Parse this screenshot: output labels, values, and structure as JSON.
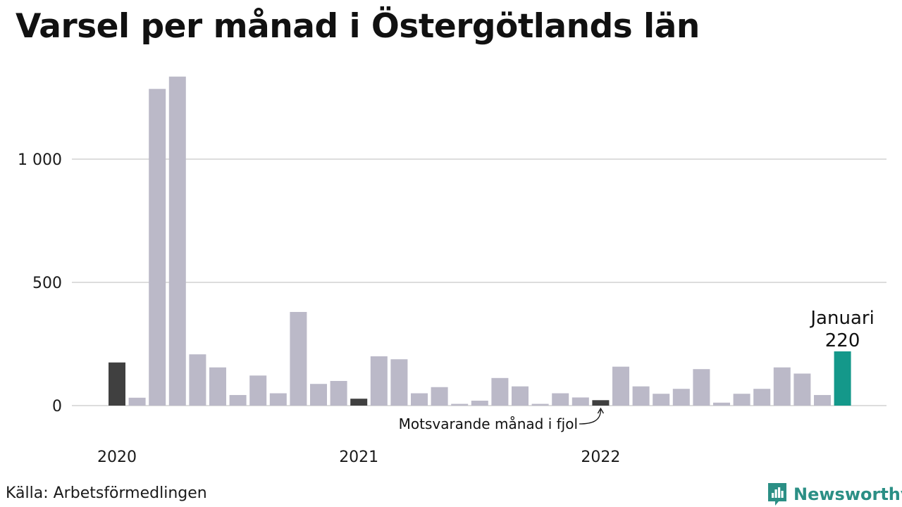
{
  "title": "Varsel per månad i Östergötlands län",
  "source": "Källa: Arbetsförmedlingen",
  "brand": "Newsworthy",
  "colors": {
    "default_bar": "#bbb9c8",
    "same_month_last_year": "#404040",
    "current": "#14988a",
    "grid": "#dddddd",
    "brand": "#2b8f85"
  },
  "chart_data": {
    "type": "bar",
    "y_ticks": [
      {
        "value": 0,
        "label": "0"
      },
      {
        "value": 500,
        "label": "500"
      },
      {
        "value": 1000,
        "label": "1 000"
      }
    ],
    "x_year_labels": [
      {
        "index": 0,
        "label": "2020"
      },
      {
        "index": 12,
        "label": "2021"
      },
      {
        "index": 24,
        "label": "2022"
      }
    ],
    "ylim": [
      0,
      1350
    ],
    "grid": true,
    "values": [
      175,
      32,
      1285,
      1335,
      208,
      155,
      43,
      122,
      50,
      380,
      88,
      100,
      28,
      200,
      188,
      50,
      75,
      7,
      20,
      112,
      78,
      7,
      50,
      33,
      22,
      158,
      78,
      48,
      68,
      148,
      12,
      48,
      68,
      155,
      130,
      43,
      220
    ],
    "highlight_last_year": [
      0,
      12,
      24
    ],
    "current_index": 36,
    "current_label_name": "Januari",
    "current_label_value": "220",
    "annotation": "Motsvarande månad i fjol"
  }
}
